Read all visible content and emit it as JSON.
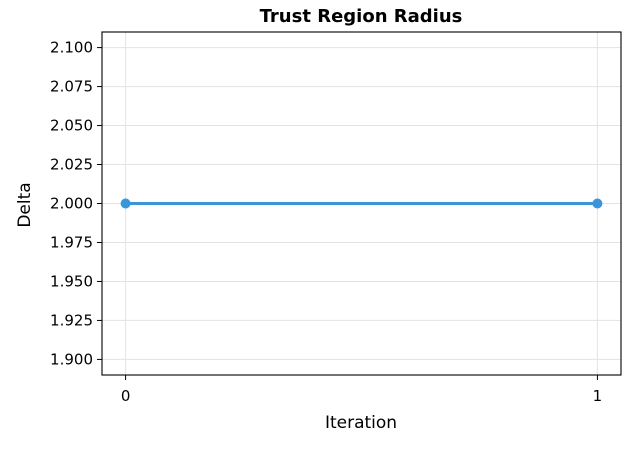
{
  "chart_data": {
    "type": "line",
    "title": "Trust Region Radius",
    "xlabel": "Iteration",
    "ylabel": "Delta",
    "x": [
      0,
      1
    ],
    "series": [
      {
        "values": [
          2.0,
          2.0
        ],
        "color": "#3a96d8",
        "marker": "circle"
      }
    ],
    "xlim": [
      -0.05,
      1.05
    ],
    "ylim": [
      1.89,
      2.11
    ],
    "xticks": [
      0,
      1
    ],
    "xtick_labels": [
      "0",
      "1"
    ],
    "yticks": [
      1.9,
      1.925,
      1.95,
      1.975,
      2.0,
      2.025,
      2.05,
      2.075,
      2.1
    ],
    "ytick_labels": [
      "1.900",
      "1.925",
      "1.950",
      "1.975",
      "2.000",
      "2.025",
      "2.050",
      "2.075",
      "2.100"
    ],
    "grid": true,
    "legend": "none"
  }
}
